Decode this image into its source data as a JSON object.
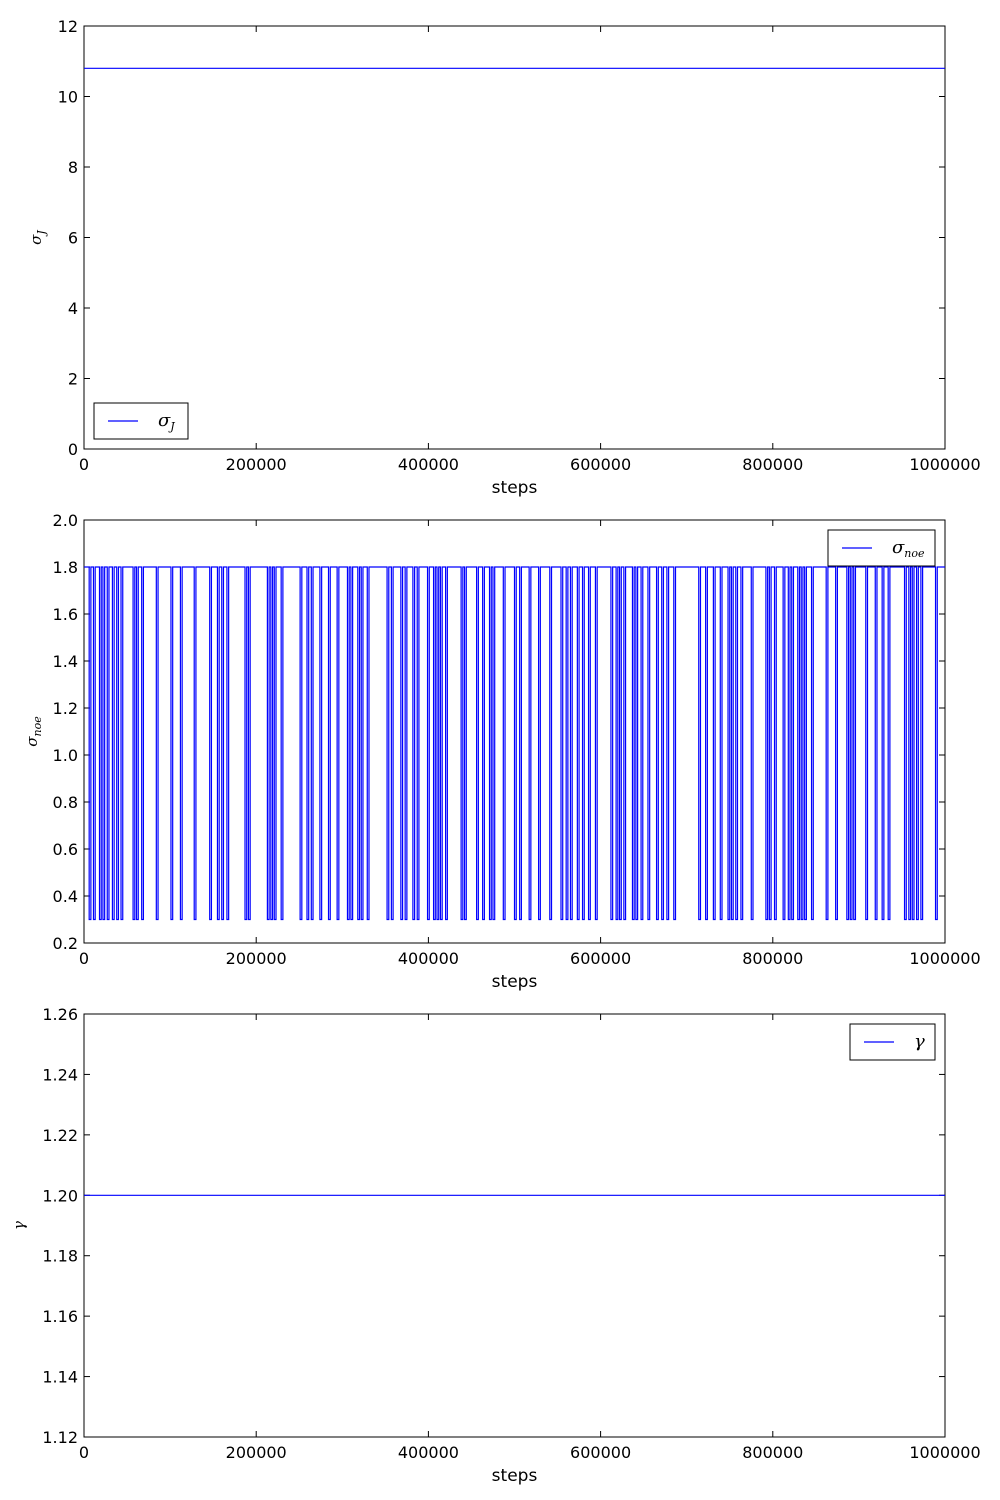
{
  "chart_data": [
    {
      "type": "line",
      "xlabel": "steps",
      "ylabel_main": "σ",
      "ylabel_sub": "J",
      "legend": "top-left",
      "legend_position": "lower-left",
      "legend_label_main": "σ",
      "legend_label_sub": "J",
      "xlim": [
        0,
        1000000
      ],
      "ylim": [
        0,
        12
      ],
      "x_ticks": [
        0,
        200000,
        400000,
        600000,
        800000,
        1000000
      ],
      "x_tick_labels": [
        "0",
        "200000",
        "400000",
        "600000",
        "800000",
        "1000000"
      ],
      "y_ticks": [
        0,
        2,
        4,
        6,
        8,
        10,
        12
      ],
      "y_tick_labels": [
        "0",
        "2",
        "4",
        "6",
        "8",
        "10",
        "12"
      ],
      "series": [
        {
          "color": "#0000ff",
          "kind": "constant",
          "value": 10.8
        }
      ]
    },
    {
      "type": "line",
      "xlabel": "steps",
      "ylabel_main": "σ",
      "ylabel_sub": "noe",
      "legend_position": "upper-right",
      "legend_label_main": "σ",
      "legend_label_sub": "noe",
      "xlim": [
        0,
        1000000
      ],
      "ylim": [
        0.2,
        2.0
      ],
      "x_ticks": [
        0,
        200000,
        400000,
        600000,
        800000,
        1000000
      ],
      "x_tick_labels": [
        "0",
        "200000",
        "400000",
        "600000",
        "800000",
        "1000000"
      ],
      "y_ticks": [
        0.2,
        0.4,
        0.6,
        0.8,
        1.0,
        1.2,
        1.4,
        1.6,
        1.8,
        2.0
      ],
      "y_tick_labels": [
        "0.2",
        "0.4",
        "0.6",
        "0.8",
        "1.0",
        "1.2",
        "1.4",
        "1.6",
        "1.8",
        "2.0"
      ],
      "series": [
        {
          "color": "#0000ff",
          "kind": "switching",
          "high": 1.8,
          "low": 0.3,
          "low_intervals": [
            [
              6000,
              8000
            ],
            [
              11000,
              13000
            ],
            [
              18000,
              20000
            ],
            [
              22000,
              24000
            ],
            [
              27000,
              29000
            ],
            [
              33000,
              35000
            ],
            [
              38000,
              40000
            ],
            [
              43000,
              45000
            ],
            [
              57000,
              59000
            ],
            [
              61000,
              63000
            ],
            [
              67000,
              69000
            ],
            [
              84000,
              86000
            ],
            [
              101000,
              103000
            ],
            [
              112000,
              114000
            ],
            [
              128000,
              130000
            ],
            [
              146000,
              148000
            ],
            [
              155000,
              157000
            ],
            [
              160000,
              162000
            ],
            [
              166000,
              168000
            ],
            [
              187000,
              189000
            ],
            [
              191000,
              193000
            ],
            [
              213000,
              215000
            ],
            [
              217000,
              219000
            ],
            [
              221000,
              223000
            ],
            [
              229000,
              231000
            ],
            [
              251000,
              253000
            ],
            [
              259000,
              261000
            ],
            [
              264000,
              266000
            ],
            [
              274000,
              276000
            ],
            [
              284000,
              286000
            ],
            [
              294000,
              296000
            ],
            [
              306000,
              308000
            ],
            [
              310000,
              312000
            ],
            [
              318000,
              320000
            ],
            [
              322000,
              324000
            ],
            [
              329000,
              331000
            ],
            [
              352000,
              354000
            ],
            [
              357000,
              359000
            ],
            [
              368000,
              370000
            ],
            [
              373000,
              375000
            ],
            [
              382000,
              384000
            ],
            [
              387000,
              389000
            ],
            [
              399000,
              401000
            ],
            [
              406000,
              408000
            ],
            [
              410000,
              412000
            ],
            [
              414000,
              416000
            ],
            [
              420000,
              422000
            ],
            [
              438000,
              440000
            ],
            [
              442000,
              444000
            ],
            [
              456000,
              458000
            ],
            [
              463000,
              465000
            ],
            [
              471000,
              473000
            ],
            [
              475000,
              477000
            ],
            [
              487000,
              489000
            ],
            [
              500000,
              502000
            ],
            [
              506000,
              508000
            ],
            [
              517000,
              519000
            ],
            [
              528000,
              530000
            ],
            [
              541000,
              543000
            ],
            [
              554000,
              556000
            ],
            [
              560000,
              562000
            ],
            [
              565000,
              567000
            ],
            [
              573000,
              575000
            ],
            [
              579000,
              581000
            ],
            [
              586000,
              588000
            ],
            [
              594000,
              596000
            ],
            [
              612000,
              614000
            ],
            [
              618000,
              620000
            ],
            [
              622000,
              624000
            ],
            [
              627000,
              629000
            ],
            [
              637000,
              639000
            ],
            [
              641000,
              643000
            ],
            [
              647000,
              649000
            ],
            [
              655000,
              657000
            ],
            [
              665000,
              667000
            ],
            [
              671000,
              673000
            ],
            [
              677000,
              679000
            ],
            [
              685000,
              687000
            ],
            [
              714000,
              716000
            ],
            [
              722000,
              724000
            ],
            [
              731000,
              733000
            ],
            [
              739000,
              741000
            ],
            [
              748000,
              750000
            ],
            [
              752000,
              754000
            ],
            [
              757000,
              759000
            ],
            [
              763000,
              765000
            ],
            [
              775000,
              777000
            ],
            [
              792000,
              794000
            ],
            [
              796000,
              798000
            ],
            [
              802000,
              804000
            ],
            [
              812000,
              814000
            ],
            [
              818000,
              820000
            ],
            [
              822000,
              824000
            ],
            [
              829000,
              831000
            ],
            [
              833000,
              835000
            ],
            [
              837000,
              839000
            ],
            [
              845000,
              847000
            ],
            [
              862000,
              864000
            ],
            [
              873000,
              875000
            ],
            [
              886000,
              888000
            ],
            [
              890000,
              892000
            ],
            [
              894000,
              896000
            ],
            [
              908000,
              910000
            ],
            [
              919000,
              921000
            ],
            [
              927000,
              929000
            ],
            [
              934000,
              936000
            ],
            [
              953000,
              955000
            ],
            [
              958000,
              960000
            ],
            [
              962000,
              964000
            ],
            [
              967000,
              969000
            ],
            [
              972000,
              974000
            ],
            [
              989000,
              991000
            ]
          ]
        }
      ]
    },
    {
      "type": "line",
      "xlabel": "steps",
      "ylabel_main": "γ",
      "ylabel_sub": "",
      "legend_position": "upper-right",
      "legend_label_main": "γ",
      "legend_label_sub": "",
      "xlim": [
        0,
        1000000
      ],
      "ylim": [
        1.12,
        1.26
      ],
      "x_ticks": [
        0,
        200000,
        400000,
        600000,
        800000,
        1000000
      ],
      "x_tick_labels": [
        "0",
        "200000",
        "400000",
        "600000",
        "800000",
        "1000000"
      ],
      "y_ticks": [
        1.12,
        1.14,
        1.16,
        1.18,
        1.2,
        1.22,
        1.24,
        1.26
      ],
      "y_tick_labels": [
        "1.12",
        "1.14",
        "1.16",
        "1.18",
        "1.20",
        "1.22",
        "1.24",
        "1.26"
      ],
      "series": [
        {
          "color": "#0000ff",
          "kind": "constant",
          "value": 1.2
        }
      ]
    }
  ]
}
